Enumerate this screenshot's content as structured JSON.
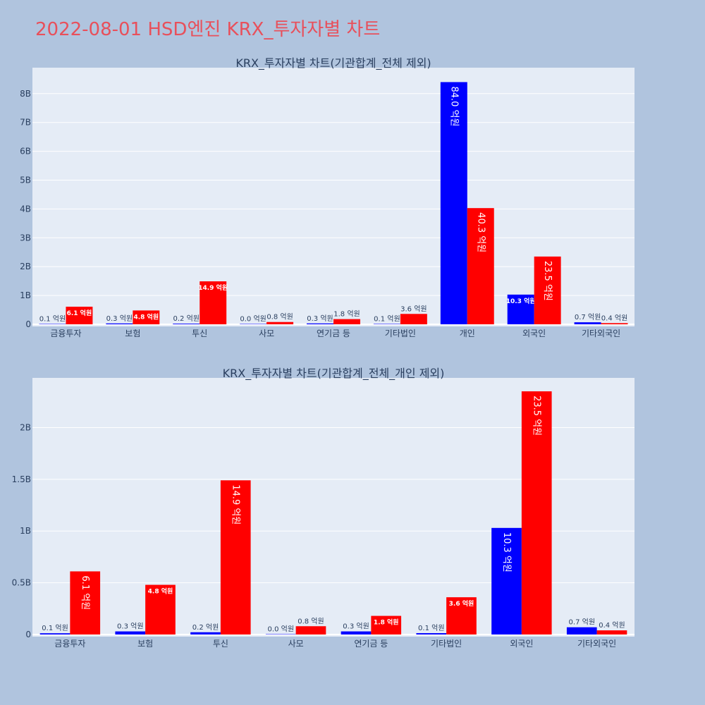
{
  "title": "2022-08-01 HSD엔진 KRX_투자자별 차트",
  "chart_data": [
    {
      "type": "bar",
      "title": "KRX_투자자별 차트(기관합계_전체 제외)",
      "categories": [
        "금융투자",
        "보험",
        "투신",
        "사모",
        "연기금 등",
        "기타법인",
        "개인",
        "외국인",
        "기타외국인"
      ],
      "series": [
        {
          "color": "#0000ff",
          "values": [
            12000000,
            30000000,
            22000000,
            3000000,
            30000000,
            13000000,
            8400000000,
            1030000000,
            70000000
          ],
          "labels": [
            "0.1 억원",
            "0.3 억원",
            "0.2 억원",
            "0.0 억원",
            "0.3 억원",
            "0.1 억원",
            "84.0 억원",
            "10.3 억원",
            "0.7 억원"
          ]
        },
        {
          "color": "#ff0000",
          "values": [
            610000000,
            480000000,
            1490000000,
            80000000,
            180000000,
            360000000,
            4030000000,
            2350000000,
            40000000
          ],
          "labels": [
            "6.1 억원",
            "4.8 억원",
            "14.9 억원",
            "0.8 억원",
            "1.8 억원",
            "3.6 억원",
            "40.3 억원",
            "23.5 억원",
            "0.4 억원"
          ]
        }
      ],
      "yticks": [
        0,
        1000000000,
        2000000000,
        3000000000,
        4000000000,
        5000000000,
        6000000000,
        7000000000,
        8000000000
      ],
      "ytick_labels": [
        "0",
        "1B",
        "2B",
        "3B",
        "4B",
        "5B",
        "6B",
        "7B",
        "8B"
      ],
      "ylim": [
        0,
        8900000000
      ],
      "grid": true
    },
    {
      "type": "bar",
      "title": "KRX_투자자별 차트(기관합계_전체_개인 제외)",
      "categories": [
        "금융투자",
        "보험",
        "투신",
        "사모",
        "연기금 등",
        "기타법인",
        "외국인",
        "기타외국인"
      ],
      "series": [
        {
          "color": "#0000ff",
          "values": [
            12000000,
            30000000,
            22000000,
            3000000,
            30000000,
            13000000,
            1030000000,
            70000000
          ],
          "labels": [
            "0.1 억원",
            "0.3 억원",
            "0.2 억원",
            "0.0 억원",
            "0.3 억원",
            "0.1 억원",
            "10.3 억원",
            "0.7 억원"
          ]
        },
        {
          "color": "#ff0000",
          "values": [
            610000000,
            480000000,
            1490000000,
            80000000,
            180000000,
            360000000,
            2350000000,
            40000000
          ],
          "labels": [
            "6.1 억원",
            "4.8 억원",
            "14.9 억원",
            "0.8 억원",
            "1.8 억원",
            "3.6 억원",
            "23.5 억원",
            "0.4 억원"
          ]
        }
      ],
      "yticks": [
        0,
        500000000,
        1000000000,
        1500000000,
        2000000000
      ],
      "ytick_labels": [
        "0",
        "0.5B",
        "1B",
        "1.5B",
        "2B"
      ],
      "ylim": [
        0,
        2480000000
      ],
      "grid": true
    }
  ]
}
